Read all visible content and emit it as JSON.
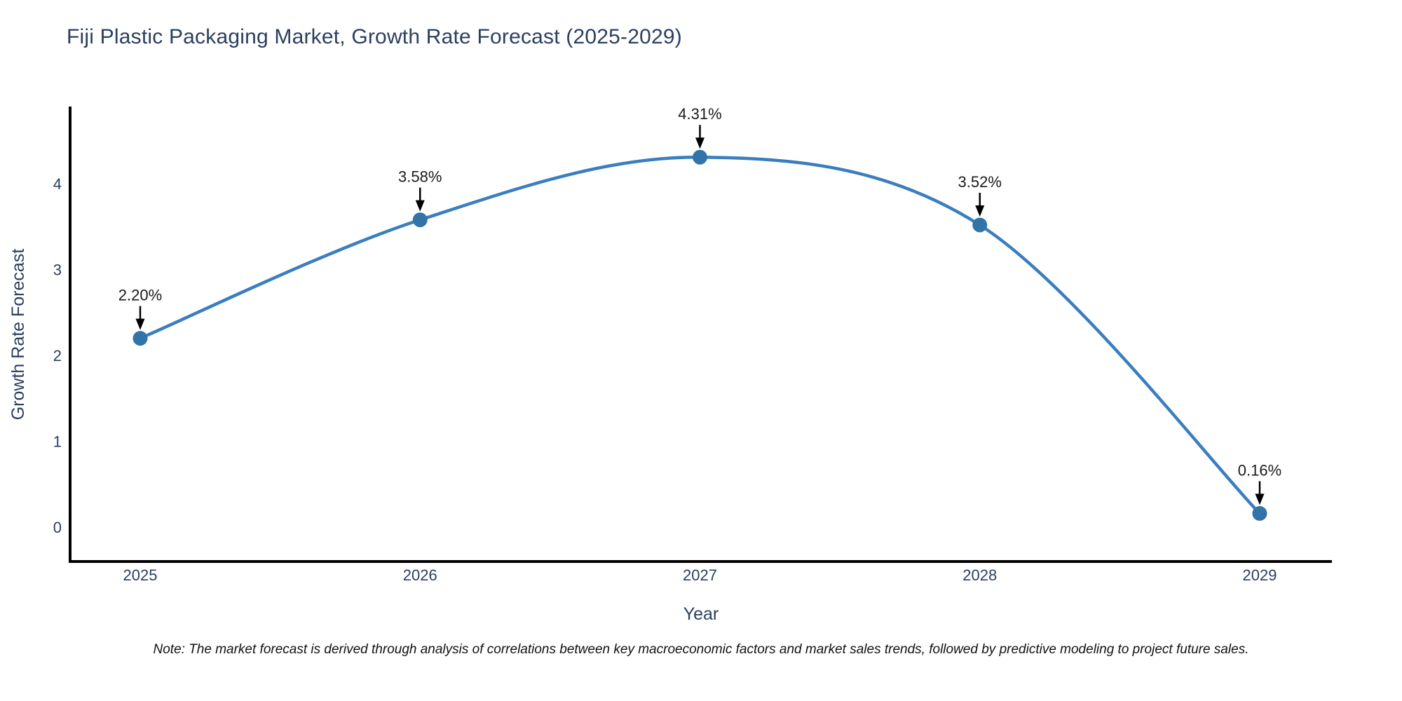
{
  "title": "Fiji Plastic Packaging Market, Growth Rate Forecast (2025-2029)",
  "note": "Note: The market forecast is derived through analysis of correlations between key macroeconomic factors and market sales trends, followed by predictive modeling to project future sales.",
  "chart_data": {
    "type": "line",
    "title": "Fiji Plastic Packaging Market, Growth Rate Forecast (2025-2029)",
    "xlabel": "Year",
    "ylabel": "Growth Rate Forecast",
    "categories": [
      "2025",
      "2026",
      "2027",
      "2028",
      "2029"
    ],
    "values": [
      2.2,
      3.58,
      4.31,
      3.52,
      0.16
    ],
    "point_labels": [
      "2.20%",
      "3.58%",
      "4.31%",
      "3.52%",
      "0.16%"
    ],
    "yticks": [
      0,
      1,
      2,
      3,
      4
    ],
    "ylim": [
      -0.4,
      4.9
    ],
    "line_shape": "spline",
    "grid": "off",
    "legend": "none",
    "line_color": "#3a7ebf",
    "marker_color": "#3274a8",
    "axis_color": "#000000",
    "arrow_color": "#000000",
    "text_color": "#2a3f5f"
  }
}
